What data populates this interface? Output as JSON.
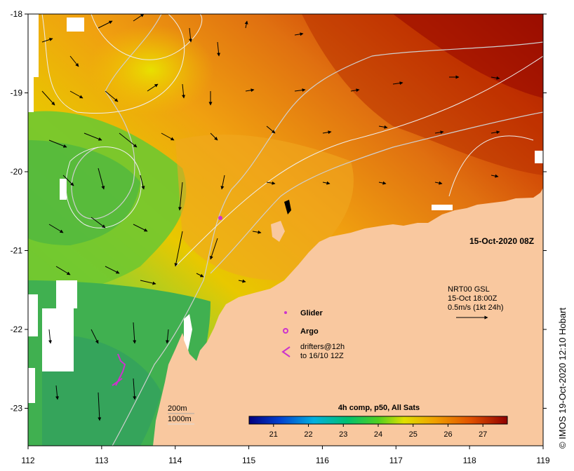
{
  "map": {
    "date_label": "15-Oct-2020 08Z",
    "composite_label": "4h comp, p50, All Sats",
    "credit": "© IMOS 19-Oct-2020 12:10 Hobart",
    "colorbar": {
      "min": 20.3,
      "max": 27.7,
      "ticks": [
        "21",
        "22",
        "23",
        "24",
        "25",
        "26",
        "27"
      ]
    },
    "x_ticks": [
      "112",
      "113",
      "114",
      "115",
      "116",
      "117",
      "118",
      "119"
    ],
    "y_ticks": [
      "-18",
      "-19",
      "-20",
      "-21",
      "-22",
      "-23"
    ],
    "current_legend": {
      "line1": "NRT00 GSL",
      "line2": "15-Oct 18:00Z",
      "line3": "0.5m/s (1kt 24h)"
    },
    "depth_legend": {
      "d1": "200m",
      "d2": "1000m"
    },
    "symbols_legend": {
      "glider": "Glider",
      "argo": "Argo",
      "drifters1": "drifters@12h",
      "drifters2": "to 16/10 12Z"
    },
    "colors": {
      "land": "#f9c89f",
      "glider": "#cc33cc",
      "contour": "#e8e8e8"
    }
  }
}
